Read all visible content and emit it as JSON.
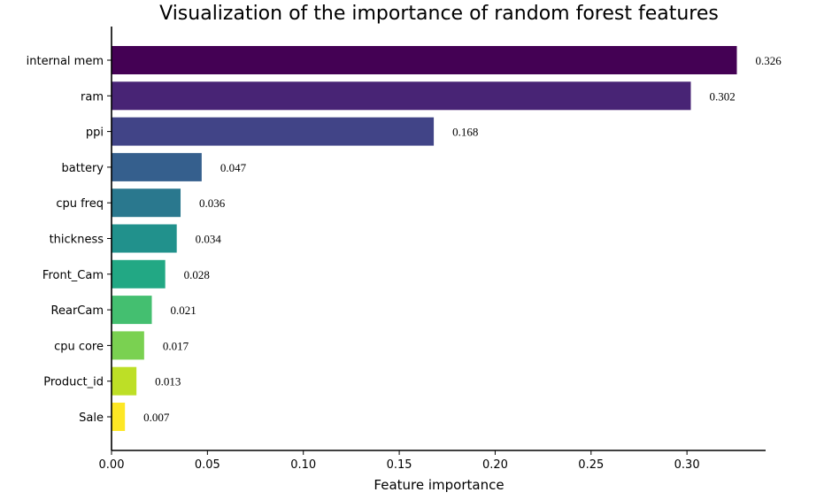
{
  "chart_data": {
    "type": "bar",
    "orientation": "horizontal",
    "title": "Visualization of the importance of random forest features",
    "xlabel": "Feature importance",
    "ylabel": "",
    "categories": [
      "internal mem",
      "ram",
      "ppi",
      "battery",
      "cpu freq",
      "thickness",
      "Front_Cam",
      "RearCam",
      "cpu core",
      "Product_id",
      "Sale"
    ],
    "values": [
      0.326,
      0.302,
      0.168,
      0.047,
      0.036,
      0.034,
      0.028,
      0.021,
      0.017,
      0.013,
      0.007
    ],
    "value_labels": [
      "0.326",
      "0.302",
      "0.168",
      "0.047",
      "0.036",
      "0.034",
      "0.028",
      "0.021",
      "0.017",
      "0.013",
      "0.007"
    ],
    "xlim": [
      0,
      0.341
    ],
    "xticks": [
      0.0,
      0.05,
      0.1,
      0.15,
      0.2,
      0.25,
      0.3
    ],
    "xtick_labels": [
      "0.00",
      "0.05",
      "0.10",
      "0.15",
      "0.20",
      "0.25",
      "0.30"
    ],
    "grid": false,
    "colormap": "viridis",
    "colors": [
      "#440154",
      "#482475",
      "#414487",
      "#355f8d",
      "#2a788e",
      "#21918c",
      "#22a884",
      "#44bf70",
      "#7ad151",
      "#bddf26",
      "#fde725"
    ]
  }
}
